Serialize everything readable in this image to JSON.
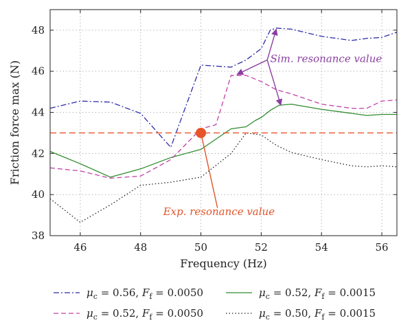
{
  "chart_data": {
    "type": "line",
    "xlabel": "Frequency (Hz)",
    "ylabel": "Friction force max (N)",
    "xlim": [
      45,
      56.5
    ],
    "ylim": [
      38,
      49
    ],
    "xticks": [
      "46",
      "48",
      "50",
      "52",
      "54",
      "56"
    ],
    "yticks": [
      "38",
      "40",
      "42",
      "44",
      "46",
      "48"
    ],
    "grid": true,
    "legend_position": "bottom",
    "series": [
      {
        "name": "μc = 0.56, Ff = 0.0050",
        "legend": {
          "mu": "μ",
          "mu_sub": "c",
          "mu_val": " = 0.56, ",
          "f": "F",
          "f_sub": "f",
          "f_val": " = 0.0050"
        },
        "color": "#2b2ba8",
        "dash": "8,3,2,3",
        "x": [
          45,
          46,
          47,
          48,
          49,
          50,
          51,
          51.5,
          52,
          52.3,
          52.5,
          53,
          54,
          55,
          55.5,
          56,
          56.5
        ],
        "y": [
          44.2,
          44.55,
          44.5,
          43.95,
          42.3,
          46.3,
          46.2,
          46.55,
          47.1,
          48.0,
          48.1,
          48.05,
          47.7,
          47.5,
          47.6,
          47.65,
          47.9
        ]
      },
      {
        "name": "μc = 0.52, Ff = 0.0015",
        "legend": {
          "mu": "μ",
          "mu_sub": "c",
          "mu_val": " = 0.52, ",
          "f": "F",
          "f_sub": "f",
          "f_val": " = 0.0015"
        },
        "color": "#2e8b2e",
        "dash": "",
        "x": [
          45,
          46,
          47,
          48,
          49,
          50,
          51,
          51.5,
          51.8,
          52,
          52.3,
          52.6,
          53,
          54,
          55,
          55.5,
          56,
          56.5
        ],
        "y": [
          42.1,
          41.5,
          40.85,
          41.25,
          41.8,
          42.2,
          43.2,
          43.3,
          43.6,
          43.75,
          44.1,
          44.35,
          44.4,
          44.15,
          43.95,
          43.85,
          43.9,
          43.9
        ]
      },
      {
        "name": "μc = 0.52, Ff = 0.0050",
        "legend": {
          "mu": "μ",
          "mu_sub": "c",
          "mu_val": " = 0.52, ",
          "f": "F",
          "f_sub": "f",
          "f_val": " = 0.0050"
        },
        "color": "#c040a8",
        "dash": "7,4",
        "x": [
          45,
          46,
          47,
          48,
          49,
          50,
          50.5,
          51,
          51.5,
          52,
          52.5,
          53,
          54,
          55,
          55.5,
          56,
          56.5
        ],
        "y": [
          41.3,
          41.15,
          40.8,
          40.9,
          41.7,
          43.2,
          43.4,
          45.8,
          45.8,
          45.5,
          45.1,
          44.9,
          44.4,
          44.2,
          44.2,
          44.55,
          44.6
        ]
      },
      {
        "name": "μc = 0.50, Ff = 0.0015",
        "legend": {
          "mu": "μ",
          "mu_sub": "c",
          "mu_val": " = 0.50, ",
          "f": "F",
          "f_sub": "f",
          "f_val": " = 0.0015"
        },
        "color": "#222222",
        "dash": "1.5,3",
        "x": [
          45,
          46,
          47,
          48,
          49,
          50,
          51,
          51.5,
          52,
          52.5,
          53,
          54,
          55,
          55.5,
          56,
          56.5
        ],
        "y": [
          39.8,
          38.65,
          39.5,
          40.45,
          40.6,
          40.85,
          42.0,
          43.0,
          42.9,
          42.4,
          42.05,
          41.7,
          41.4,
          41.35,
          41.4,
          41.35
        ]
      }
    ],
    "reference_line": {
      "y": 43.0,
      "color": "#e8542a",
      "dash": "9,5"
    },
    "experimental_point": {
      "x": 50.0,
      "y": 43.0,
      "color": "#e8542a"
    },
    "annotations": [
      {
        "text": "Sim. resonance value",
        "color": "#8a3fa0",
        "label_at": [
          52.3,
          46.45
        ],
        "arrow_origin": [
          52.2,
          46.55
        ],
        "arrow_targets": [
          [
            52.5,
            48.05
          ],
          [
            51.2,
            45.85
          ],
          [
            52.65,
            44.35
          ]
        ]
      },
      {
        "text": "Exp. resonance value",
        "color": "#e0542a",
        "label_at": [
          50.6,
          39.0
        ],
        "arrow_origin": [
          50.55,
          39.35
        ],
        "arrow_targets": [
          [
            50.0,
            43.0
          ]
        ]
      }
    ]
  }
}
